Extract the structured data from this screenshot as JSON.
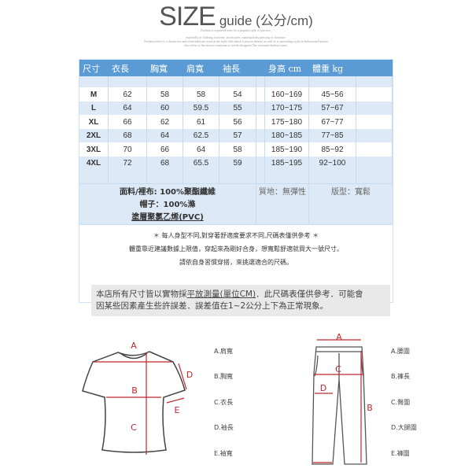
{
  "title": {
    "main": "SIZE",
    "sub": "guide (公分/cm)"
  },
  "fine_print": [
    "Fashion is a general term for a popular style or practice,",
    "especially in clothing,footwear, accessories, makeup,body piercing or furniture.",
    "Fashion refers to a distinctive and often habitual trend in the style with which a person dresses as well as to prevailing styles in behaviour.Fashion",
    "also refers to the newest creations of textile designers.The recreated fashion items."
  ],
  "table": {
    "headers": [
      "尺寸",
      "衣長",
      "胸寬",
      "肩寬",
      "袖長",
      "",
      "身高 cm",
      "體重 kg",
      ""
    ],
    "rows": [
      [
        "M",
        "62",
        "58",
        "58",
        "54",
        "",
        "160~169",
        "45~56",
        ""
      ],
      [
        "L",
        "64",
        "60",
        "59.5",
        "55",
        "",
        "170~175",
        "57~67",
        ""
      ],
      [
        "XL",
        "66",
        "62",
        "61",
        "56",
        "",
        "175~180",
        "67~77",
        ""
      ],
      [
        "2XL",
        "68",
        "64",
        "62.5",
        "57",
        "",
        "180~185",
        "77~85",
        ""
      ],
      [
        "3XL",
        "70",
        "66",
        "64",
        "58",
        "",
        "185~190",
        "85~92",
        ""
      ],
      [
        "4XL",
        "72",
        "68",
        "65.5",
        "59",
        "",
        "185~195",
        "92~100",
        ""
      ]
    ],
    "material": [
      "面料/裡布: 100%聚酯纖維",
      "帽子：100%滌",
      "塗層聚氯乙烯(PVC)"
    ],
    "texture": "質地：無彈性",
    "fit": "版型：寬鬆",
    "notes": [
      "＊ 每人身型不同,對穿著舒適度要求不同,尺碼表僅供參考 ＊",
      "體重靠近建議數據上限值，穿起來為剛好合身，想寬鬆舒適就買大一號尺寸。",
      "請依自身習慣穿搭，來挑選適合的尺碼。"
    ]
  },
  "disclaimer": {
    "pre": "本店所有尺寸皆以實物採",
    "underlined": "平放測量(單位CM)",
    "post": "．此尺碼表僅供參考．可能會",
    "line2": "因某些因素產生些許誤差．誤差值在1~2公分上下為正常現象。"
  },
  "shirt": {
    "markers": [
      "A",
      "B",
      "C",
      "D",
      "E"
    ],
    "legend": [
      "A.肩寬",
      "B.胸寬",
      "C.衣長",
      "D.袖長",
      "E.袖寬"
    ]
  },
  "pants": {
    "markers": [
      "A",
      "B",
      "C",
      "D"
    ],
    "legend": [
      "A.腰圍",
      "B.褲長",
      "C.臀圍",
      "D.大腿圍",
      "E.褲圍"
    ]
  },
  "colors": {
    "header": "#5b9bd5",
    "stripe": "#dde9f6",
    "marker": "#c0282d"
  }
}
